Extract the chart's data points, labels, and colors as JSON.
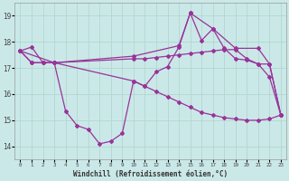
{
  "xlabel": "Windchill (Refroidissement éolien,°C)",
  "background_color": "#cbe8e8",
  "grid_color": "#b0d8d0",
  "line_color": "#993399",
  "xlim": [
    -0.5,
    23.5
  ],
  "ylim": [
    13.5,
    19.5
  ],
  "yticks": [
    14,
    15,
    16,
    17,
    18,
    19
  ],
  "xticks": [
    0,
    1,
    2,
    3,
    4,
    5,
    6,
    7,
    8,
    9,
    10,
    11,
    12,
    13,
    14,
    15,
    16,
    17,
    18,
    19,
    20,
    21,
    22,
    23
  ],
  "line1_x": [
    0,
    1,
    2,
    3,
    4,
    5,
    6,
    7,
    8,
    9,
    10,
    11,
    12,
    13,
    14,
    15,
    16,
    17,
    18,
    19,
    20,
    21,
    22,
    23
  ],
  "line1_y": [
    17.65,
    17.8,
    17.2,
    17.2,
    15.35,
    14.8,
    14.65,
    14.1,
    14.2,
    14.5,
    16.5,
    16.3,
    16.85,
    17.05,
    17.8,
    19.1,
    18.05,
    18.5,
    17.75,
    17.35,
    17.3,
    17.15,
    16.65,
    15.2
  ],
  "line2_x": [
    0,
    1,
    2,
    3,
    10,
    11,
    12,
    13,
    14,
    15,
    16,
    17,
    18,
    19,
    20,
    21,
    22,
    23
  ],
  "line2_y": [
    17.65,
    17.2,
    17.2,
    17.2,
    17.35,
    17.35,
    17.4,
    17.45,
    17.5,
    17.55,
    17.6,
    17.65,
    17.7,
    17.7,
    17.35,
    17.15,
    17.15,
    15.2
  ],
  "line3_x": [
    0,
    3,
    10,
    14,
    15,
    17,
    19,
    21,
    22,
    23
  ],
  "line3_y": [
    17.65,
    17.2,
    17.45,
    17.85,
    19.1,
    18.5,
    17.75,
    17.75,
    17.15,
    15.2
  ],
  "line4_x": [
    0,
    1,
    2,
    3,
    10,
    11,
    12,
    13,
    14,
    15,
    16,
    17,
    18,
    19,
    20,
    21,
    22,
    23
  ],
  "line4_y": [
    17.65,
    17.2,
    17.2,
    17.2,
    16.5,
    16.3,
    16.1,
    15.9,
    15.7,
    15.5,
    15.3,
    15.2,
    15.1,
    15.05,
    15.0,
    15.0,
    15.05,
    15.2
  ]
}
